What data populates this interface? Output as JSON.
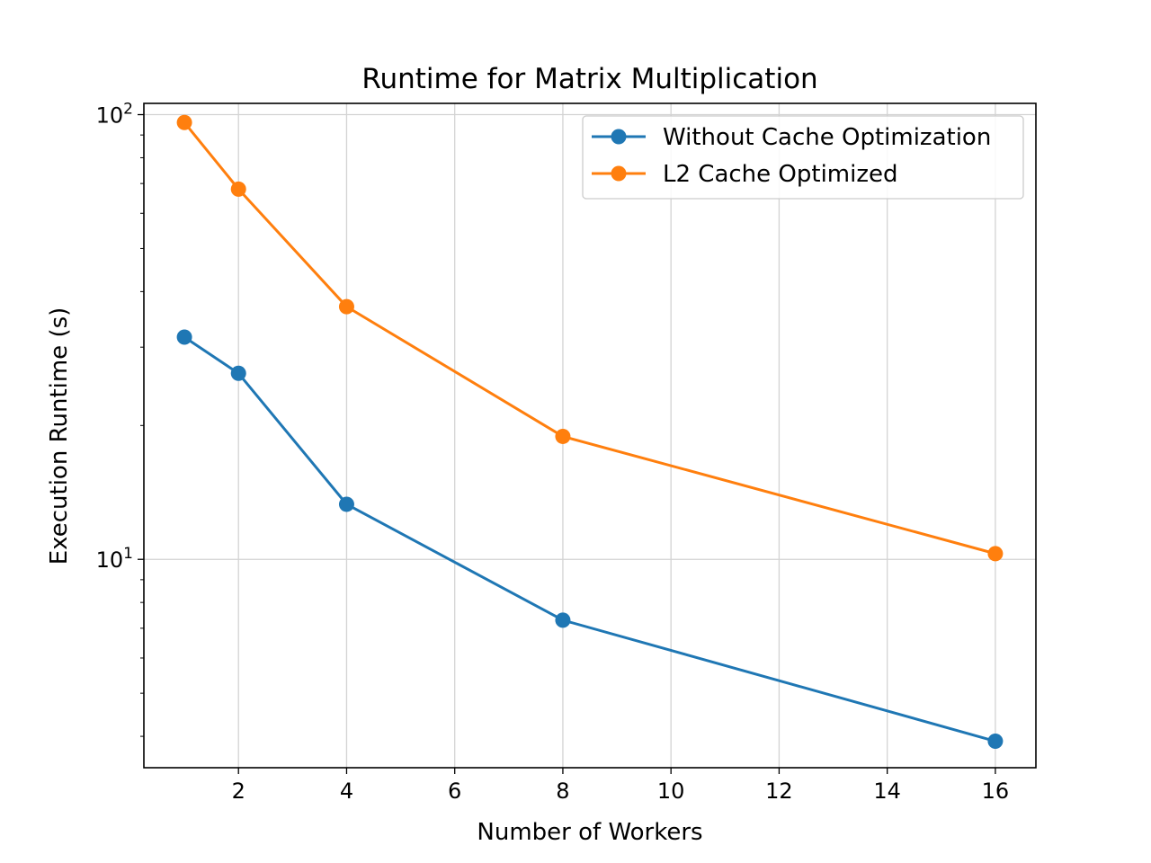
{
  "chart_data": {
    "type": "line",
    "title": "Runtime for Matrix Multiplication",
    "xlabel": "Number of Workers",
    "ylabel": "Execution Runtime (s)",
    "x": [
      1,
      2,
      4,
      8,
      16
    ],
    "series": [
      {
        "name": "Without Cache Optimization",
        "color": "#1f77b4",
        "values": [
          31.6,
          26.2,
          13.3,
          7.3,
          3.9
        ]
      },
      {
        "name": "L2 Cache Optimized",
        "color": "#ff7f0e",
        "values": [
          96.0,
          68.0,
          37.0,
          18.9,
          10.3
        ]
      }
    ],
    "xlim": [
      0.25,
      16.75
    ],
    "ylim": [
      3.4,
      106
    ],
    "yscale": "log",
    "xticks": [
      2,
      4,
      6,
      8,
      10,
      12,
      14,
      16
    ],
    "yticks": [
      {
        "value": 10,
        "base": "10",
        "exp": "1"
      },
      {
        "value": 100,
        "base": "10",
        "exp": "2"
      }
    ],
    "grid": true,
    "legend_position": "upper right",
    "marker": "circle"
  }
}
